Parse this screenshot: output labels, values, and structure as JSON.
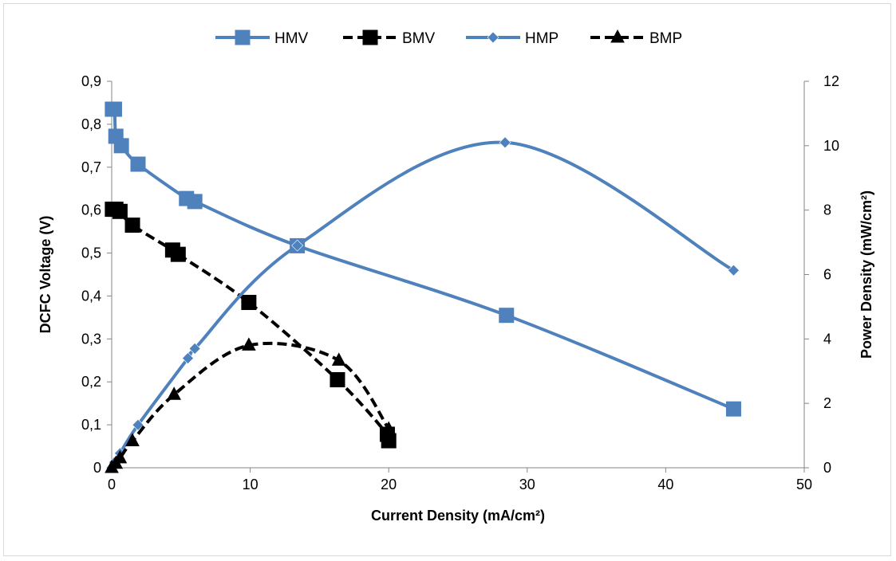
{
  "chart_data": {
    "type": "scatter",
    "xlabel": "Current Density (mA/cm²)",
    "ylabel_left": "DCFC Voltage (V)",
    "ylabel_right": "Power Density (mW/cm²)",
    "xlim": [
      0,
      50
    ],
    "ylim_left": [
      0,
      0.9
    ],
    "ylim_right": [
      0,
      12
    ],
    "x_ticks": [
      "0",
      "10",
      "20",
      "30",
      "40",
      "50"
    ],
    "y_left_ticks": [
      "0",
      "0,1",
      "0,2",
      "0,3",
      "0,4",
      "0,5",
      "0,6",
      "0,7",
      "0,8",
      "0,9"
    ],
    "y_right_ticks": [
      "0",
      "2",
      "4",
      "6",
      "8",
      "10",
      "12"
    ],
    "grid": false,
    "legend_position": "top",
    "series": [
      {
        "name": "HMV",
        "axis": "left",
        "color": "#4f81bd",
        "dash": "solid",
        "marker": "square",
        "points": [
          [
            0.05,
            0.835
          ],
          [
            0.2,
            0.835
          ],
          [
            0.3,
            0.772
          ],
          [
            0.7,
            0.75
          ],
          [
            1.9,
            0.707
          ],
          [
            5.4,
            0.627
          ],
          [
            6.0,
            0.62
          ],
          [
            13.4,
            0.517
          ],
          [
            28.5,
            0.355
          ],
          [
            44.9,
            0.137
          ]
        ]
      },
      {
        "name": "BMV",
        "axis": "left",
        "color": "#000000",
        "dash": "dashed",
        "marker": "square",
        "points": [
          [
            0.05,
            0.602
          ],
          [
            0.3,
            0.602
          ],
          [
            0.6,
            0.597
          ],
          [
            1.5,
            0.565
          ],
          [
            4.4,
            0.507
          ],
          [
            4.8,
            0.497
          ],
          [
            9.9,
            0.385
          ],
          [
            16.3,
            0.205
          ],
          [
            19.9,
            0.078
          ],
          [
            20.0,
            0.063
          ]
        ]
      },
      {
        "name": "HMP",
        "axis": "right",
        "color": "#4f81bd",
        "dash": "solid",
        "marker": "diamond",
        "points": [
          [
            0.0,
            0.0
          ],
          [
            0.2,
            0.17
          ],
          [
            0.6,
            0.45
          ],
          [
            1.9,
            1.33
          ],
          [
            5.5,
            3.4
          ],
          [
            6.0,
            3.7
          ],
          [
            13.4,
            6.9
          ],
          [
            28.4,
            10.1
          ],
          [
            44.9,
            6.13
          ]
        ]
      },
      {
        "name": "BMP",
        "axis": "right",
        "color": "#000000",
        "dash": "dashed",
        "marker": "triangle",
        "points": [
          [
            0.0,
            0.0
          ],
          [
            0.3,
            0.13
          ],
          [
            0.6,
            0.3
          ],
          [
            1.5,
            0.83
          ],
          [
            4.5,
            2.27
          ],
          [
            9.9,
            3.8
          ],
          [
            16.4,
            3.33
          ],
          [
            20.0,
            1.2
          ],
          [
            20.0,
            0.95
          ]
        ]
      }
    ]
  }
}
